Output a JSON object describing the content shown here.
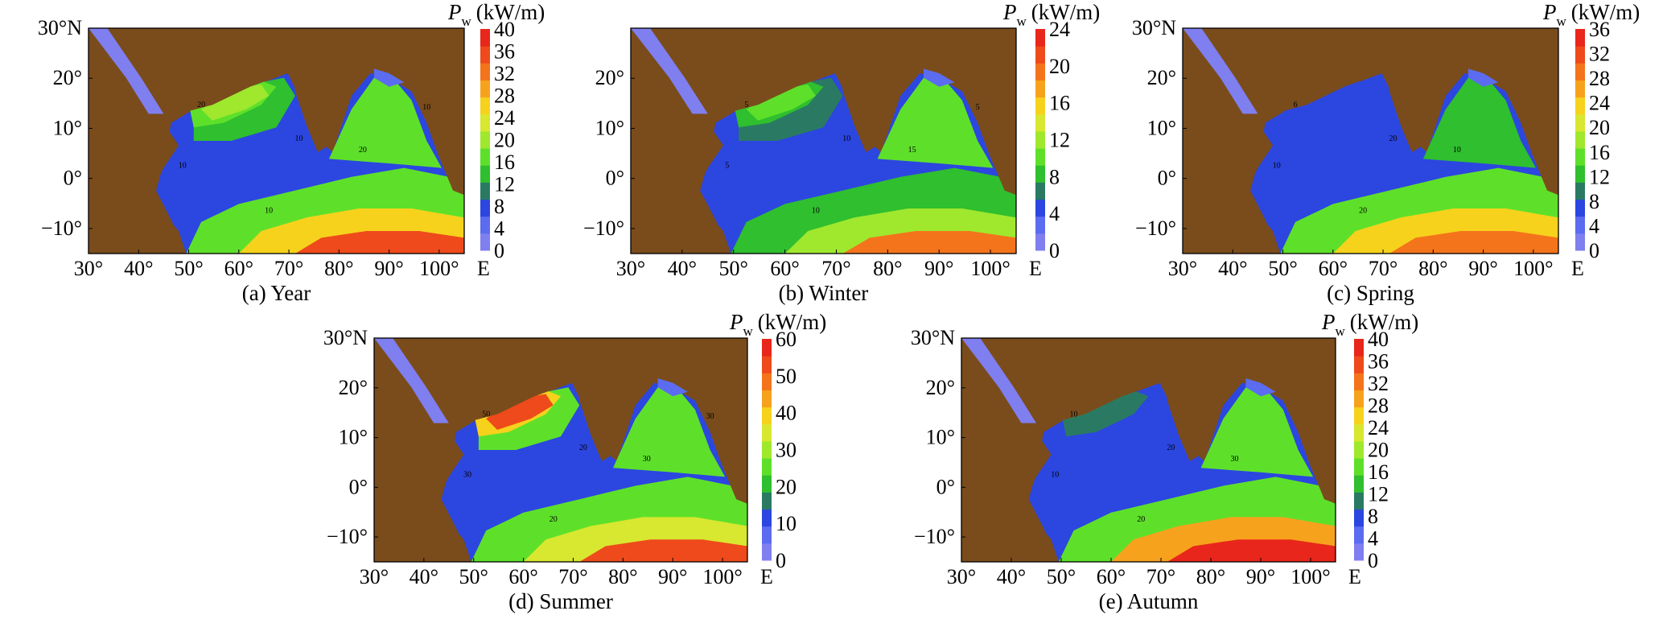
{
  "figure": {
    "colors": {
      "land": "#7a4c1c",
      "ocean_ramp": [
        "#7f7ff0",
        "#5b6cf0",
        "#2c46e0",
        "#2a7a63",
        "#2fbf2f",
        "#5ee02a",
        "#9fe82d",
        "#d8e72f",
        "#f6d21c",
        "#f7a21d",
        "#f4741b",
        "#ee4a1b",
        "#e8261b"
      ]
    },
    "panels": [
      {
        "id": "a",
        "caption": "(a) Year",
        "lat_ticks": [
          "30°N",
          "20°",
          "10°",
          "0°",
          "−10°"
        ],
        "lon_ticks": [
          "30°",
          "40°",
          "50°",
          "60°",
          "70°",
          "80°",
          "90°",
          "100°"
        ],
        "lon_suffix": "E",
        "colorbar": {
          "title": "P",
          "subscript": "w",
          "unit": "(kW/m)",
          "max": 40,
          "tick_labels": [
            "40",
            "36",
            "32",
            "28",
            "24",
            "20",
            "16",
            "12",
            "8",
            "4",
            "0"
          ]
        },
        "contour_labels": [
          "20",
          "10",
          "10",
          "10",
          "20",
          "10"
        ]
      },
      {
        "id": "b",
        "caption": "(b) Winter",
        "lat_ticks": [
          "20°",
          "10°",
          "0°",
          "−10°"
        ],
        "lon_ticks": [
          "30°",
          "40°",
          "50°",
          "60°",
          "70°",
          "80°",
          "90°",
          "100°"
        ],
        "lon_suffix": "E",
        "colorbar": {
          "title": "P",
          "subscript": "w",
          "unit": "(kW/m)",
          "max": 24,
          "tick_labels": [
            "24",
            "20",
            "16",
            "12",
            "8",
            "4",
            "0"
          ]
        },
        "contour_labels": [
          "5",
          "5",
          "10",
          "10",
          "15",
          "5"
        ]
      },
      {
        "id": "c",
        "caption": "(c) Spring",
        "lat_ticks": [
          "30°N",
          "20°",
          "10°",
          "0°",
          "−10°"
        ],
        "lon_ticks": [
          "30°",
          "40°",
          "50°",
          "60°",
          "70°",
          "80°",
          "90°",
          "100°"
        ],
        "lon_suffix": "E",
        "colorbar": {
          "title": "P",
          "subscript": "w",
          "unit": "(kW/m)",
          "max": 36,
          "tick_labels": [
            "36",
            "32",
            "28",
            "24",
            "20",
            "16",
            "12",
            "8",
            "4",
            "0"
          ]
        },
        "contour_labels": [
          "6",
          "10",
          "20",
          "20",
          "10"
        ]
      },
      {
        "id": "d",
        "caption": "(d) Summer",
        "lat_ticks": [
          "30°N",
          "20°",
          "10°",
          "0°",
          "−10°"
        ],
        "lon_ticks": [
          "30°",
          "40°",
          "50°",
          "60°",
          "70°",
          "80°",
          "90°",
          "100°"
        ],
        "lon_suffix": "E",
        "colorbar": {
          "title": "P",
          "subscript": "w",
          "unit": "(kW/m)",
          "max": 60,
          "tick_labels": [
            "60",
            "50",
            "40",
            "30",
            "20",
            "10",
            "0"
          ]
        },
        "contour_labels": [
          "50",
          "30",
          "20",
          "20",
          "30",
          "30"
        ]
      },
      {
        "id": "e",
        "caption": "(e) Autumn",
        "lat_ticks": [
          "30°N",
          "20°",
          "10°",
          "0°",
          "−10°"
        ],
        "lon_ticks": [
          "30°",
          "40°",
          "50°",
          "60°",
          "70°",
          "80°",
          "90°",
          "100°"
        ],
        "lon_suffix": "E",
        "colorbar": {
          "title": "P",
          "subscript": "w",
          "unit": "(kW/m)",
          "max": 40,
          "tick_labels": [
            "40",
            "36",
            "32",
            "28",
            "24",
            "20",
            "16",
            "12",
            "8",
            "4",
            "0"
          ]
        },
        "contour_labels": [
          "10",
          "10",
          "20",
          "20",
          "30"
        ]
      }
    ]
  },
  "chart_data": [
    {
      "type": "heatmap",
      "title": "(a) Year",
      "variable": "P_w",
      "unit": "kW/m",
      "xlim": [
        30,
        105
      ],
      "ylim": [
        -15,
        30
      ],
      "colorbar_range": [
        0,
        40
      ],
      "contour_levels": [
        10,
        20
      ]
    },
    {
      "type": "heatmap",
      "title": "(b) Winter",
      "variable": "P_w",
      "unit": "kW/m",
      "xlim": [
        30,
        105
      ],
      "ylim": [
        -15,
        30
      ],
      "colorbar_range": [
        0,
        24
      ],
      "contour_levels": [
        5,
        10,
        15
      ]
    },
    {
      "type": "heatmap",
      "title": "(c) Spring",
      "variable": "P_w",
      "unit": "kW/m",
      "xlim": [
        30,
        105
      ],
      "ylim": [
        -15,
        30
      ],
      "colorbar_range": [
        0,
        36
      ],
      "contour_levels": [
        6,
        10,
        20
      ]
    },
    {
      "type": "heatmap",
      "title": "(d) Summer",
      "variable": "P_w",
      "unit": "kW/m",
      "xlim": [
        30,
        105
      ],
      "ylim": [
        -15,
        30
      ],
      "colorbar_range": [
        0,
        60
      ],
      "contour_levels": [
        20,
        30,
        50
      ]
    },
    {
      "type": "heatmap",
      "title": "(e) Autumn",
      "variable": "P_w",
      "unit": "kW/m",
      "xlim": [
        30,
        105
      ],
      "ylim": [
        -15,
        30
      ],
      "colorbar_range": [
        0,
        40
      ],
      "contour_levels": [
        10,
        20,
        30
      ]
    }
  ]
}
